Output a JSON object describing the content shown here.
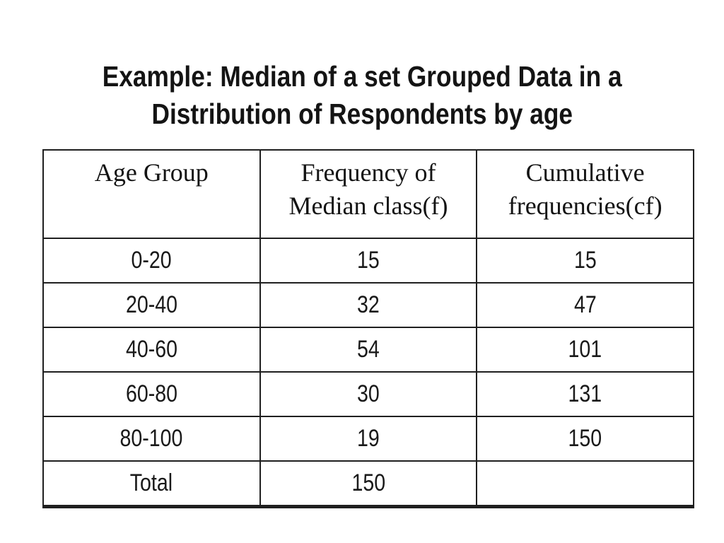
{
  "slide": {
    "title_line1": "Example: Median of a set Grouped Data in a",
    "title_line2": "Distribution of Respondents by age"
  },
  "table": {
    "columns": [
      "Age Group",
      "Frequency of Median class(f)",
      "Cumulative frequencies(cf)"
    ],
    "rows": [
      [
        "0-20",
        "15",
        "15"
      ],
      [
        "20-40",
        "32",
        "47"
      ],
      [
        "40-60",
        "54",
        "101"
      ],
      [
        "60-80",
        "30",
        "131"
      ],
      [
        "80-100",
        "19",
        "150"
      ],
      [
        "Total",
        "150",
        ""
      ]
    ]
  },
  "colors": {
    "background": "#ffffff",
    "text": "#161616",
    "border": "#1f1f1f"
  }
}
